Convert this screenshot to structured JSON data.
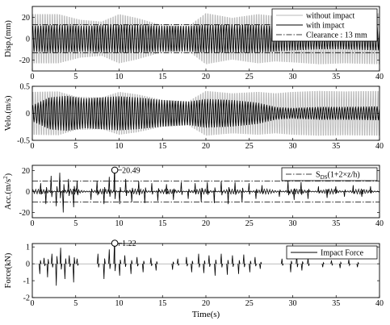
{
  "colors": {
    "light": "#b8b8b8",
    "dark": "#000000",
    "frame": "#000000",
    "background": "#ffffff"
  },
  "shared_xlabel": "Time(s)",
  "chart_data": [
    {
      "type": "line",
      "ylabel": "Disp.(mm)",
      "xlim": [
        0,
        40
      ],
      "ylim": [
        -30,
        30
      ],
      "xticks": [
        "0",
        "5",
        "10",
        "15",
        "20",
        "25",
        "30",
        "35",
        "40"
      ],
      "yticks": [
        "20",
        "0",
        "-20"
      ],
      "ytick_values": [
        20,
        0,
        -20
      ],
      "legend": {
        "placement": "top-right",
        "entries": [
          {
            "label": "without impact",
            "style": "light"
          },
          {
            "label": "with impact",
            "style": "dark"
          },
          {
            "label": "Clearance : 13 mm",
            "style": "dashdot"
          }
        ]
      },
      "reference_lines": [
        {
          "y": 13,
          "style": "dashdot",
          "label": "Clearance : 13 mm"
        },
        {
          "y": -13,
          "style": "dashdot",
          "label": ""
        }
      ],
      "series": [
        {
          "name": "without impact",
          "style": "light",
          "period_s": 0.28,
          "envelope": [
            [
              0,
              26
            ],
            [
              3,
              26
            ],
            [
              5.5,
              20
            ],
            [
              8,
              18
            ],
            [
              10,
              26
            ],
            [
              12,
              22
            ],
            [
              15,
              14
            ],
            [
              18,
              13
            ],
            [
              20,
              27
            ],
            [
              23,
              22
            ],
            [
              26,
              26
            ],
            [
              28,
              24
            ],
            [
              30,
              25
            ],
            [
              33,
              27
            ],
            [
              36,
              26
            ],
            [
              40,
              27
            ]
          ]
        },
        {
          "name": "with impact",
          "style": "dark",
          "period_s": 0.31,
          "envelope": [
            [
              0,
              12
            ],
            [
              3,
              13
            ],
            [
              6,
              12
            ],
            [
              9,
              13
            ],
            [
              12,
              13
            ],
            [
              15,
              12
            ],
            [
              18,
              12
            ],
            [
              20,
              13
            ],
            [
              23,
              13
            ],
            [
              26,
              13
            ],
            [
              30,
              11
            ],
            [
              33,
              10
            ],
            [
              36,
              10
            ],
            [
              40,
              11
            ]
          ]
        }
      ]
    },
    {
      "type": "line",
      "ylabel": "Velo.(m/s)",
      "xlim": [
        0,
        40
      ],
      "ylim": [
        -0.5,
        0.5
      ],
      "xticks": [
        "0",
        "5",
        "10",
        "15",
        "20",
        "25",
        "30",
        "35",
        "40"
      ],
      "yticks": [
        "0.5",
        "0",
        "-0.5"
      ],
      "ytick_values": [
        0.5,
        0,
        -0.5
      ],
      "series": [
        {
          "name": "without impact",
          "style": "light",
          "period_s": 0.28,
          "envelope": [
            [
              0,
              0.45
            ],
            [
              3,
              0.46
            ],
            [
              5,
              0.35
            ],
            [
              8,
              0.33
            ],
            [
              10,
              0.45
            ],
            [
              12,
              0.4
            ],
            [
              15,
              0.28
            ],
            [
              18,
              0.25
            ],
            [
              20,
              0.47
            ],
            [
              23,
              0.42
            ],
            [
              26,
              0.45
            ],
            [
              28,
              0.42
            ],
            [
              30,
              0.45
            ],
            [
              33,
              0.47
            ],
            [
              36,
              0.46
            ],
            [
              40,
              0.47
            ]
          ]
        },
        {
          "name": "with impact",
          "style": "dark",
          "period_s": 0.31,
          "envelope": [
            [
              0,
              0.15
            ],
            [
              2,
              0.3
            ],
            [
              4,
              0.33
            ],
            [
              6,
              0.28
            ],
            [
              8,
              0.3
            ],
            [
              10,
              0.32
            ],
            [
              12,
              0.3
            ],
            [
              15,
              0.25
            ],
            [
              18,
              0.22
            ],
            [
              20,
              0.27
            ],
            [
              23,
              0.25
            ],
            [
              26,
              0.2
            ],
            [
              28,
              0.12
            ],
            [
              30,
              0.1
            ],
            [
              33,
              0.12
            ],
            [
              36,
              0.12
            ],
            [
              40,
              0.13
            ]
          ]
        }
      ]
    },
    {
      "type": "line",
      "ylabel": "Acc.(m/s²)",
      "xlim": [
        0,
        40
      ],
      "ylim": [
        -25,
        25
      ],
      "xticks": [
        "0",
        "5",
        "10",
        "15",
        "20",
        "25",
        "30",
        "35",
        "40"
      ],
      "yticks": [
        "20",
        "0",
        "-20"
      ],
      "ytick_values": [
        20,
        0,
        -20
      ],
      "legend": {
        "placement": "top-right",
        "entries": [
          {
            "label": "S_DS(1+2×z/h)",
            "style": "dashdot"
          }
        ]
      },
      "reference_lines": [
        {
          "y": 10,
          "style": "dashdot",
          "label": "S_DS(1+2×z/h)"
        },
        {
          "y": -10,
          "style": "dashdot",
          "label": ""
        }
      ],
      "annotations": [
        {
          "x": 9.5,
          "y": 20.49,
          "text": "20.49",
          "marker": "circle"
        }
      ],
      "series": [
        {
          "name": "with impact",
          "style": "dark",
          "baseline_amplitude": 2.5,
          "spikes": [
            [
              1,
              8
            ],
            [
              1.6,
              -12
            ],
            [
              2.2,
              15
            ],
            [
              2.8,
              -14
            ],
            [
              3.2,
              18
            ],
            [
              3.6,
              -20
            ],
            [
              4.2,
              12
            ],
            [
              4.8,
              -15
            ],
            [
              5.2,
              10
            ],
            [
              6.8,
              -8
            ],
            [
              7.5,
              10
            ],
            [
              8.3,
              -12
            ],
            [
              8.9,
              14
            ],
            [
              9.5,
              20.49
            ],
            [
              10.1,
              -12
            ],
            [
              10.8,
              12
            ],
            [
              11.5,
              -10
            ],
            [
              12.3,
              10
            ],
            [
              13,
              -11
            ],
            [
              13.8,
              8
            ],
            [
              14.5,
              -9
            ],
            [
              15.5,
              7
            ],
            [
              16.3,
              -8
            ],
            [
              17.2,
              9
            ],
            [
              18,
              -7
            ],
            [
              18.8,
              8
            ],
            [
              19.5,
              -10
            ],
            [
              20.2,
              9
            ],
            [
              21,
              -11
            ],
            [
              21.8,
              10
            ],
            [
              22.6,
              -12
            ],
            [
              23.4,
              9
            ],
            [
              24.2,
              -10
            ],
            [
              25,
              8
            ],
            [
              25.8,
              -7
            ],
            [
              26.5,
              6
            ],
            [
              28.5,
              -5
            ],
            [
              29.5,
              10
            ],
            [
              30.2,
              -8
            ],
            [
              31,
              9
            ],
            [
              31.8,
              -7
            ],
            [
              33,
              5
            ],
            [
              34,
              -6
            ],
            [
              35,
              5
            ],
            [
              36,
              -5
            ],
            [
              37,
              6
            ],
            [
              38,
              -5
            ],
            [
              39,
              5
            ]
          ]
        }
      ]
    },
    {
      "type": "line",
      "ylabel": "Force(kN)",
      "xlim": [
        0,
        40
      ],
      "ylim": [
        -2,
        1.2
      ],
      "xticks": [
        "0",
        "5",
        "10",
        "15",
        "20",
        "25",
        "30",
        "35",
        "40"
      ],
      "xlabel": "Time(s)",
      "yticks": [
        "1",
        "0",
        "-1",
        "-2"
      ],
      "ytick_values": [
        1,
        0,
        -1,
        -2
      ],
      "legend": {
        "placement": "top-right",
        "entries": [
          {
            "label": "Impact Force",
            "style": "dark"
          }
        ]
      },
      "annotations": [
        {
          "x": 9.5,
          "y": 1.22,
          "text": "1.22",
          "marker": "circle"
        }
      ],
      "series": [
        {
          "name": "Impact Force",
          "style": "dark",
          "spikes": [
            [
              0.9,
              -0.6
            ],
            [
              1.4,
              0.35
            ],
            [
              1.8,
              -0.8
            ],
            [
              2.3,
              0.6
            ],
            [
              2.8,
              -1.3
            ],
            [
              3.3,
              0.95
            ],
            [
              3.8,
              -0.9
            ],
            [
              4.3,
              0.5
            ],
            [
              4.8,
              -1.1
            ],
            [
              5.2,
              0.3
            ],
            [
              7.6,
              0.6
            ],
            [
              8.3,
              -0.9
            ],
            [
              8.9,
              0.85
            ],
            [
              9.5,
              1.22
            ],
            [
              10.1,
              -0.7
            ],
            [
              10.7,
              0.5
            ],
            [
              11.4,
              -0.6
            ],
            [
              12.1,
              0.4
            ],
            [
              12.8,
              -0.5
            ],
            [
              13.7,
              0.35
            ],
            [
              14.3,
              -0.4
            ],
            [
              16.2,
              -0.35
            ],
            [
              16.8,
              0.3
            ],
            [
              17.8,
              0.4
            ],
            [
              18.4,
              -0.5
            ],
            [
              19.2,
              0.6
            ],
            [
              19.8,
              -0.55
            ],
            [
              20.4,
              0.5
            ],
            [
              21.1,
              -0.7
            ],
            [
              21.8,
              0.6
            ],
            [
              22.5,
              -0.65
            ],
            [
              23.1,
              0.5
            ],
            [
              23.8,
              -0.6
            ],
            [
              24.4,
              0.55
            ],
            [
              25.1,
              -0.5
            ],
            [
              25.7,
              0.4
            ],
            [
              26.3,
              -0.3
            ],
            [
              28.8,
              0.3
            ],
            [
              29.8,
              -0.5
            ],
            [
              30.5,
              0.55
            ],
            [
              31.1,
              -0.4
            ],
            [
              31.8,
              0.35
            ],
            [
              33.5,
              -0.2
            ],
            [
              34.5,
              0.2
            ],
            [
              35.5,
              -0.25
            ],
            [
              36.5,
              0.25
            ],
            [
              37.5,
              -0.2
            ]
          ]
        }
      ]
    }
  ]
}
